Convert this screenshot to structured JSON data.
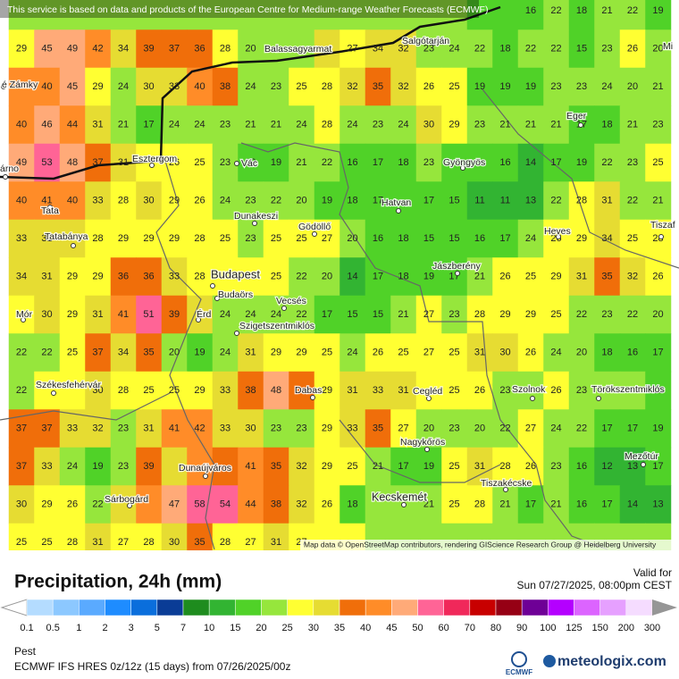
{
  "banner": "This service is based on data and products of the European Centre for Medium-range Weather Forecasts (ECMWF)",
  "attribution": "Map data © OpenStreetMap contributors, rendering GIScience Research Group @ Heidelberg University",
  "title": "Precipitation, 24h (mm)",
  "valid_label": "Valid for",
  "valid_time": "Sun 07/27/2025, 08:00pm CEST",
  "region": "Pest",
  "model": "ECMWF IFS HRES 0z/12z (15 days) from  07/26/2025/00z",
  "logo_ecmwf": "ECMWF",
  "logo_site": "meteologix.com",
  "cities": [
    "Balassagyarmat",
    "Salgótarján",
    "é Zámky",
    "Eger",
    "árno",
    "Esztergom",
    "Vác",
    "Gyöngyös",
    "Tata",
    "Dunakeszi",
    "Gödöllő",
    "Hatvan",
    "Heves",
    "Tiszaf",
    "Tatabánya",
    "Jászberény",
    "Budapest",
    "Budaörs",
    "Vecsés",
    "Mór",
    "Érd",
    "Szigetszentmiklós",
    "Székesfehérvár",
    "Dabas",
    "Cegléd",
    "Szolnok",
    "Törökszentmiklós",
    "Nagykőrös",
    "Dunaújváros",
    "Mezőtúr",
    "Tiszakécske",
    "Sárbogárd",
    "Kecskemét",
    "Mi"
  ],
  "legend": {
    "labels": [
      0.1,
      0.5,
      1,
      2,
      3,
      5,
      7,
      10,
      15,
      20,
      25,
      30,
      35,
      40,
      45,
      50,
      60,
      70,
      80,
      90,
      100,
      125,
      150,
      200,
      300
    ],
    "colors": [
      "#ffffff",
      "#b4dcff",
      "#8cc8ff",
      "#5aaaff",
      "#1e8cff",
      "#0a6edc",
      "#0a3c96",
      "#1e8c1e",
      "#32b432",
      "#50d228",
      "#96e63c",
      "#ffff32",
      "#e6dc32",
      "#f06e0a",
      "#ff8c28",
      "#ffaa78",
      "#ff6496",
      "#f0285a",
      "#c80000",
      "#960014",
      "#6e0096",
      "#b400ff",
      "#dc64ff",
      "#e6a0ff",
      "#f5dcff",
      "#dcdcdc",
      "#969696"
    ]
  },
  "grid": [
    [
      null,
      null,
      null,
      null,
      null,
      null,
      null,
      null,
      null,
      null,
      null,
      null,
      null,
      null,
      null,
      null,
      null,
      null,
      null,
      null,
      16,
      22,
      18,
      21,
      22,
      19
    ],
    [
      29,
      45,
      49,
      42,
      34,
      39,
      37,
      36,
      28,
      20,
      null,
      null,
      null,
      27,
      34,
      32,
      23,
      24,
      22,
      18,
      22,
      22,
      15,
      23,
      26,
      20
    ],
    [
      null,
      40,
      45,
      29,
      24,
      30,
      33,
      40,
      38,
      24,
      23,
      25,
      28,
      32,
      35,
      32,
      26,
      25,
      19,
      19,
      19,
      23,
      23,
      24,
      20,
      21
    ],
    [
      40,
      46,
      44,
      31,
      21,
      17,
      24,
      24,
      23,
      21,
      21,
      24,
      28,
      24,
      23,
      24,
      30,
      29,
      23,
      21,
      21,
      21,
      17,
      18,
      21,
      23
    ],
    [
      49,
      53,
      48,
      37,
      31,
      null,
      26,
      25,
      23,
      19,
      19,
      21,
      22,
      16,
      17,
      18,
      23,
      null,
      null,
      16,
      14,
      17,
      19,
      22,
      23,
      25
    ],
    [
      40,
      41,
      40,
      33,
      28,
      30,
      29,
      26,
      24,
      23,
      22,
      20,
      19,
      18,
      17,
      null,
      17,
      15,
      11,
      11,
      13,
      22,
      28,
      31,
      22,
      21
    ],
    [
      33,
      31,
      null,
      28,
      29,
      29,
      29,
      28,
      25,
      23,
      25,
      25,
      27,
      20,
      16,
      18,
      15,
      15,
      16,
      17,
      24,
      26,
      29,
      34,
      25,
      28
    ],
    [
      34,
      31,
      29,
      29,
      36,
      36,
      33,
      28,
      null,
      25,
      25,
      22,
      20,
      14,
      17,
      18,
      19,
      17,
      21,
      26,
      25,
      29,
      31,
      35,
      32,
      26
    ],
    [
      null,
      30,
      29,
      31,
      41,
      51,
      39,
      null,
      24,
      24,
      24,
      22,
      17,
      15,
      15,
      21,
      27,
      23,
      28,
      29,
      29,
      25,
      22,
      23,
      22,
      20
    ],
    [
      22,
      22,
      25,
      37,
      34,
      35,
      20,
      19,
      24,
      31,
      29,
      29,
      25,
      24,
      26,
      25,
      27,
      25,
      31,
      30,
      26,
      24,
      20,
      18,
      16,
      17
    ],
    [
      22,
      null,
      null,
      30,
      28,
      25,
      25,
      29,
      33,
      38,
      48,
      null,
      29,
      31,
      33,
      31,
      null,
      25,
      26,
      23,
      null,
      26,
      23,
      null,
      null,
      19
    ],
    [
      37,
      37,
      33,
      32,
      23,
      31,
      41,
      42,
      33,
      30,
      23,
      23,
      29,
      33,
      35,
      27,
      20,
      23,
      20,
      22,
      27,
      24,
      22,
      17,
      17,
      19
    ],
    [
      37,
      33,
      24,
      19,
      23,
      39,
      null,
      null,
      null,
      41,
      35,
      32,
      29,
      25,
      21,
      17,
      19,
      25,
      31,
      28,
      26,
      23,
      16,
      12,
      13,
      17
    ],
    [
      30,
      29,
      26,
      22,
      null,
      null,
      47,
      58,
      54,
      44,
      38,
      32,
      26,
      18,
      null,
      null,
      21,
      25,
      28,
      21,
      17,
      21,
      16,
      17,
      14,
      13
    ],
    [
      25,
      25,
      28,
      31,
      27,
      28,
      30,
      35,
      28,
      27,
      31,
      27,
      null,
      null,
      null,
      null,
      null,
      null,
      null,
      null,
      null,
      null,
      null,
      null,
      null,
      null
    ]
  ]
}
